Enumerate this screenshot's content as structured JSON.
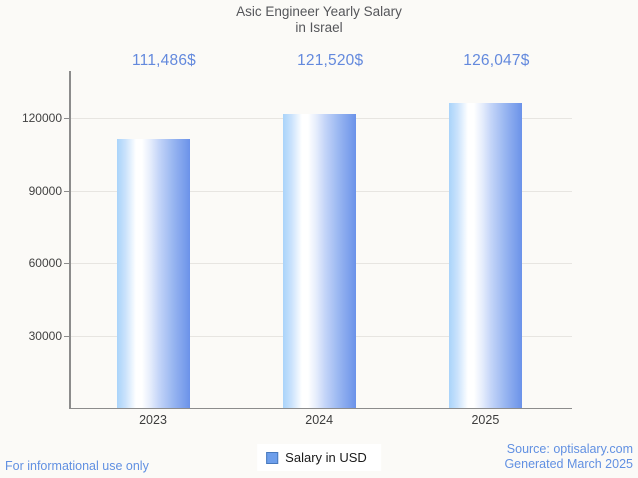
{
  "title": {
    "line1": "Asic Engineer Yearly Salary",
    "line2": "in Israel"
  },
  "chart_data": {
    "type": "bar",
    "categories": [
      "2023",
      "2024",
      "2025"
    ],
    "series": [
      {
        "name": "Salary in USD",
        "values": [
          111486,
          121520,
          126047
        ]
      }
    ],
    "value_labels": [
      "111,486$",
      "121,520$",
      "126,047$"
    ],
    "title": "Asic Engineer Yearly Salary in Israel",
    "xlabel": "",
    "ylabel": "",
    "yticks": [
      30000,
      60000,
      90000,
      120000
    ],
    "ytick_labels": [
      "30000",
      "60000",
      "90000",
      "120000"
    ],
    "ylim": [
      0,
      139500
    ],
    "grid": true,
    "legend_position": "bottom"
  },
  "legend": {
    "swatch_color": "#6d9eeb"
  },
  "footer": {
    "left": "For informational use only",
    "source_line": "Source: optisalary.com",
    "generated_line": "Generated March 2025"
  },
  "colors": {
    "background": "#fbfaf7",
    "accent_text": "#6389dd",
    "bar_gradient_start": "#a9d3fa",
    "bar_gradient_end": "#6b92e9",
    "axis": "#8c8c8c",
    "gridline": "#e7e5e1",
    "title_text": "#55565a"
  }
}
